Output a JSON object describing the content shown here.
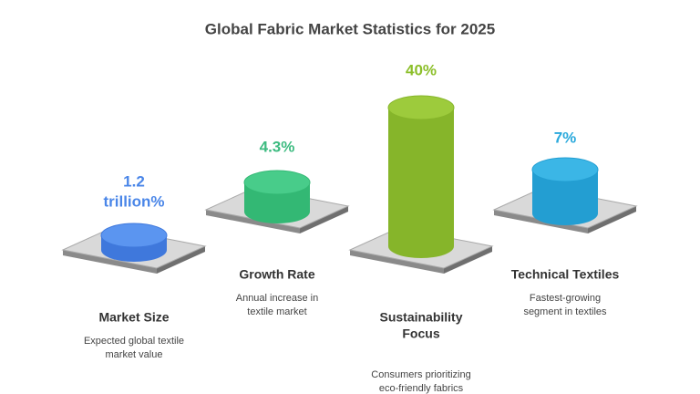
{
  "header": {
    "title": "Global Fabric Market Statistics for 2025"
  },
  "items": [
    {
      "value_lines": [
        "1.2",
        "trillion%"
      ],
      "title_lines": [
        "Market Size"
      ],
      "description_lines": [
        "Expected global textile",
        "market value"
      ]
    },
    {
      "value_lines": [
        "4.3%"
      ],
      "title_lines": [
        "Growth Rate"
      ],
      "description_lines": [
        "Annual increase in",
        "textile market"
      ]
    },
    {
      "value_lines": [
        "40%"
      ],
      "title_lines": [
        "Sustainability",
        "Focus"
      ],
      "description_lines": [
        "Consumers prioritizing",
        "eco-friendly fabrics"
      ]
    },
    {
      "value_lines": [
        "7%"
      ],
      "title_lines": [
        "Technical Textiles"
      ],
      "description_lines": [
        "Fastest-growing",
        "segment in textiles"
      ]
    }
  ]
}
